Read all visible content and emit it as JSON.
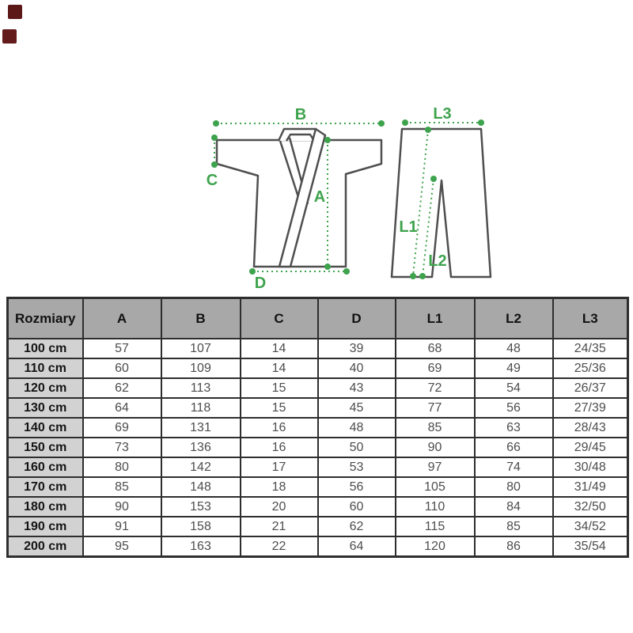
{
  "swatches": {
    "colors": [
      "#5c1717",
      "#641b1b"
    ]
  },
  "colors": {
    "measurement_green": "#3ea34d",
    "garment_outline_gray": "#4f4f4f",
    "table_border": "#2e2e2e",
    "header_bg": "#a8a8a8",
    "size_column_bg": "#d2d2d2"
  },
  "diagram": {
    "labels": {
      "a": "A",
      "b": "B",
      "c": "C",
      "d": "D",
      "l1": "L1",
      "l2": "L2",
      "l3": "L3"
    }
  },
  "table": {
    "header": [
      "Rozmiary",
      "A",
      "B",
      "C",
      "D",
      "L1",
      "L2",
      "L3"
    ],
    "rows": [
      {
        "size": "100 cm",
        "values": [
          "57",
          "107",
          "14",
          "39",
          "68",
          "48",
          "24/35"
        ]
      },
      {
        "size": "110 cm",
        "values": [
          "60",
          "109",
          "14",
          "40",
          "69",
          "49",
          "25/36"
        ]
      },
      {
        "size": "120 cm",
        "values": [
          "62",
          "113",
          "15",
          "43",
          "72",
          "54",
          "26/37"
        ]
      },
      {
        "size": "130 cm",
        "values": [
          "64",
          "118",
          "15",
          "45",
          "77",
          "56",
          "27/39"
        ]
      },
      {
        "size": "140 cm",
        "values": [
          "69",
          "131",
          "16",
          "48",
          "85",
          "63",
          "28/43"
        ]
      },
      {
        "size": "150 cm",
        "values": [
          "73",
          "136",
          "16",
          "50",
          "90",
          "66",
          "29/45"
        ]
      },
      {
        "size": "160 cm",
        "values": [
          "80",
          "142",
          "17",
          "53",
          "97",
          "74",
          "30/48"
        ]
      },
      {
        "size": "170 cm",
        "values": [
          "85",
          "148",
          "18",
          "56",
          "105",
          "80",
          "31/49"
        ]
      },
      {
        "size": "180 cm",
        "values": [
          "90",
          "153",
          "20",
          "60",
          "110",
          "84",
          "32/50"
        ]
      },
      {
        "size": "190 cm",
        "values": [
          "91",
          "158",
          "21",
          "62",
          "115",
          "85",
          "34/52"
        ]
      },
      {
        "size": "200 cm",
        "values": [
          "95",
          "163",
          "22",
          "64",
          "120",
          "86",
          "35/54"
        ]
      }
    ]
  }
}
